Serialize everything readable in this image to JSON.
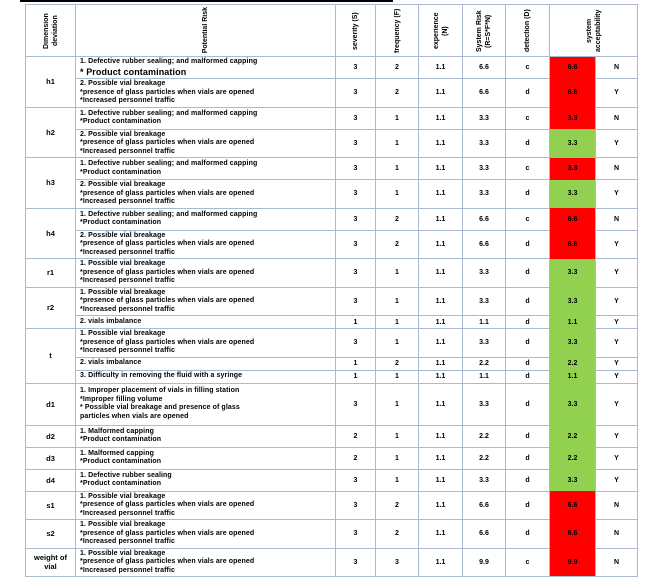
{
  "colors": {
    "risk_high": "#FF0000",
    "risk_low": "#92D050",
    "grid": "#ABBAD2",
    "text": "#000000"
  },
  "table": {
    "headers": {
      "dimension": "Dimension deviation",
      "risk": "Potential Risk",
      "severity": "severity (S)",
      "frequency": "frequency (F)",
      "experience": "experience (N)",
      "system_risk": "System Risk (R=S*F*N)",
      "detection": "detection (D)",
      "acceptability": "system acceptability"
    },
    "groups": [
      {
        "label": "h1",
        "rows": [
          {
            "risk": [
              "1. Defective rubber sealing; and malformed capping",
              "* Product contamination"
            ],
            "large_line": 1,
            "s": "3",
            "f": "2",
            "n": "1.1",
            "r": "6.6",
            "det": "c",
            "value": "6.6",
            "level": "high",
            "accept": "N"
          },
          {
            "risk": [
              "2. Possible vial breakage",
              "*presence of glass particles when vials are opened",
              "*Increased personnel traffic"
            ],
            "s": "3",
            "f": "2",
            "n": "1.1",
            "r": "6.6",
            "det": "d",
            "value": "6.6",
            "level": "high",
            "accept": "Y"
          }
        ]
      },
      {
        "label": "h2",
        "rows": [
          {
            "risk": [
              "1. Defective rubber sealing; and malformed capping",
              "*Product contamination"
            ],
            "s": "3",
            "f": "1",
            "n": "1.1",
            "r": "3.3",
            "det": "c",
            "value": "3.3",
            "level": "high",
            "accept": "N"
          },
          {
            "risk": [
              "2. Possible vial breakage",
              "*presence of glass particles when vials are opened",
              "*Increased personnel traffic"
            ],
            "s": "3",
            "f": "1",
            "n": "1.1",
            "r": "3.3",
            "det": "d",
            "value": "3.3",
            "level": "low",
            "accept": "Y"
          }
        ]
      },
      {
        "label": "h3",
        "rows": [
          {
            "risk": [
              "1. Defective rubber sealing; and malformed capping",
              "*Product contamination"
            ],
            "s": "3",
            "f": "1",
            "n": "1.1",
            "r": "3.3",
            "det": "c",
            "value": "3.3",
            "level": "high",
            "accept": "N"
          },
          {
            "risk": [
              "2. Possible vial breakage",
              "*presence of glass particles when vials are opened",
              "*Increased personnel traffic"
            ],
            "s": "3",
            "f": "1",
            "n": "1.1",
            "r": "3.3",
            "det": "d",
            "value": "3.3",
            "level": "low",
            "accept": "Y"
          }
        ]
      },
      {
        "label": "h4",
        "rows": [
          {
            "risk": [
              "1. Defective rubber sealing; and malformed capping",
              "*Product contamination"
            ],
            "s": "3",
            "f": "2",
            "n": "1.1",
            "r": "6.6",
            "det": "c",
            "value": "6.6",
            "level": "high",
            "accept": "N"
          },
          {
            "risk": [
              "2. Possible vial breakage",
              "*presence of glass particles when vials are opened",
              "*Increased personnel traffic"
            ],
            "s": "3",
            "f": "2",
            "n": "1.1",
            "r": "6.6",
            "det": "d",
            "value": "6.6",
            "level": "high",
            "accept": "Y"
          }
        ]
      },
      {
        "label": "r1",
        "rows": [
          {
            "risk": [
              "1. Possible vial breakage",
              "*presence of glass particles when vials are opened",
              "*Increased personnel traffic"
            ],
            "s": "3",
            "f": "1",
            "n": "1.1",
            "r": "3.3",
            "det": "d",
            "value": "3.3",
            "level": "low",
            "accept": "Y"
          }
        ]
      },
      {
        "label": "r2",
        "rows": [
          {
            "risk": [
              "1. Possible vial breakage",
              "*presence of glass particles when vials are opened",
              "*Increased personnel traffic"
            ],
            "s": "3",
            "f": "1",
            "n": "1.1",
            "r": "3.3",
            "det": "d",
            "value": "3.3",
            "level": "low",
            "accept": "Y"
          },
          {
            "risk": [
              "2. vials imbalance"
            ],
            "s": "1",
            "f": "1",
            "n": "1.1",
            "r": "1.1",
            "det": "d",
            "value": "1.1",
            "level": "low",
            "accept": "Y"
          }
        ]
      },
      {
        "label": "t",
        "rows": [
          {
            "risk": [
              "1. Possible vial breakage",
              "*presence of glass particles when vials are opened",
              "*Increased personnel traffic"
            ],
            "s": "3",
            "f": "1",
            "n": "1.1",
            "r": "3.3",
            "det": "d",
            "value": "3.3",
            "level": "low",
            "accept": "Y"
          },
          {
            "risk": [
              "2. vials imbalance"
            ],
            "s": "1",
            "f": "2",
            "n": "1.1",
            "r": "2.2",
            "det": "d",
            "value": "2.2",
            "level": "low",
            "accept": "Y"
          },
          {
            "risk": [
              "3. Difficulty in removing the fluid with a syringe"
            ],
            "s": "1",
            "f": "1",
            "n": "1.1",
            "r": "1.1",
            "det": "d",
            "value": "1.1",
            "level": "low",
            "accept": "Y"
          }
        ]
      },
      {
        "label": "d1",
        "rows": [
          {
            "risk": [
              "1. Improper placement of vials in filling station",
              "*Improper filling volume",
              "* Possible vial breakage and presence of glass",
              "particles when vials are opened"
            ],
            "s": "3",
            "f": "1",
            "n": "1.1",
            "r": "3.3",
            "det": "d",
            "value": "3.3",
            "level": "low",
            "accept": "Y"
          }
        ]
      },
      {
        "label": "d2",
        "rows": [
          {
            "risk": [
              "1. Malformed capping",
              "*Product contamination"
            ],
            "s": "2",
            "f": "1",
            "n": "1.1",
            "r": "2.2",
            "det": "d",
            "value": "2.2",
            "level": "low",
            "accept": "Y"
          }
        ]
      },
      {
        "label": "d3",
        "rows": [
          {
            "risk": [
              "1. Malformed capping",
              "*Product contamination"
            ],
            "s": "2",
            "f": "1",
            "n": "1.1",
            "r": "2.2",
            "det": "d",
            "value": "2.2",
            "level": "low",
            "accept": "Y"
          }
        ]
      },
      {
        "label": "d4",
        "rows": [
          {
            "risk": [
              "1. Defective rubber sealing",
              "*Product contamination"
            ],
            "s": "3",
            "f": "1",
            "n": "1.1",
            "r": "3.3",
            "det": "d",
            "value": "3.3",
            "level": "low",
            "accept": "Y"
          }
        ]
      },
      {
        "label": "s1",
        "rows": [
          {
            "risk": [
              "1. Possible vial breakage",
              "*presence of glass particles when vials are opened",
              "*Increased personnel traffic"
            ],
            "s": "3",
            "f": "2",
            "n": "1.1",
            "r": "6.6",
            "det": "d",
            "value": "6.6",
            "level": "high",
            "accept": "N"
          }
        ]
      },
      {
        "label": "s2",
        "rows": [
          {
            "risk": [
              "1. Possible vial breakage",
              "*presence of glass particles when vials are opened",
              "*Increased personnel traffic"
            ],
            "s": "3",
            "f": "2",
            "n": "1.1",
            "r": "6.6",
            "det": "d",
            "value": "6.6",
            "level": "high",
            "accept": "N"
          }
        ]
      },
      {
        "label": "weight of vial",
        "rows": [
          {
            "risk": [
              "1. Possible vial breakage",
              "*presence of glass particles when vials are opened",
              "*Increased personnel traffic"
            ],
            "s": "3",
            "f": "3",
            "n": "1.1",
            "r": "9.9",
            "det": "c",
            "value": "9.9",
            "level": "high",
            "accept": "N"
          }
        ]
      }
    ]
  }
}
